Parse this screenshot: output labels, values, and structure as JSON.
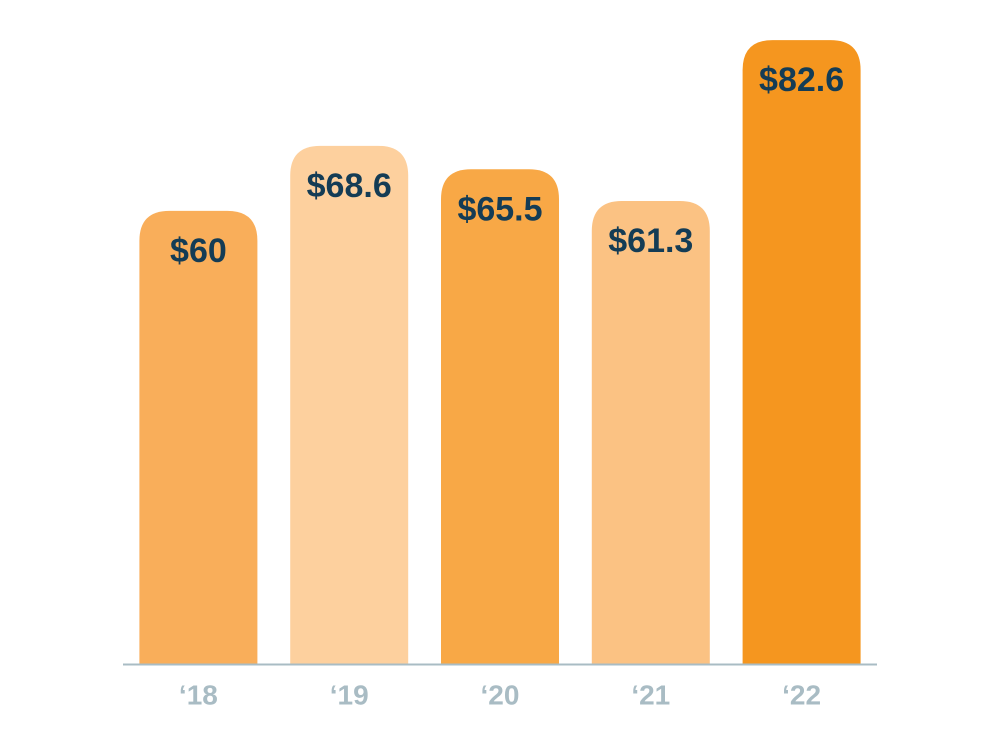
{
  "chart_data": {
    "type": "bar",
    "categories": [
      "‘18",
      "‘19",
      "‘20",
      "‘21",
      "‘22"
    ],
    "values": [
      60,
      68.6,
      65.5,
      61.3,
      82.6
    ],
    "value_labels": [
      "$60",
      "$68.6",
      "$65.5",
      "$61.3",
      "$82.6"
    ],
    "colors": [
      "#f9ae5a",
      "#fdd09e",
      "#f8a846",
      "#fbc283",
      "#f5961f"
    ],
    "ylim": [
      0,
      85
    ]
  }
}
